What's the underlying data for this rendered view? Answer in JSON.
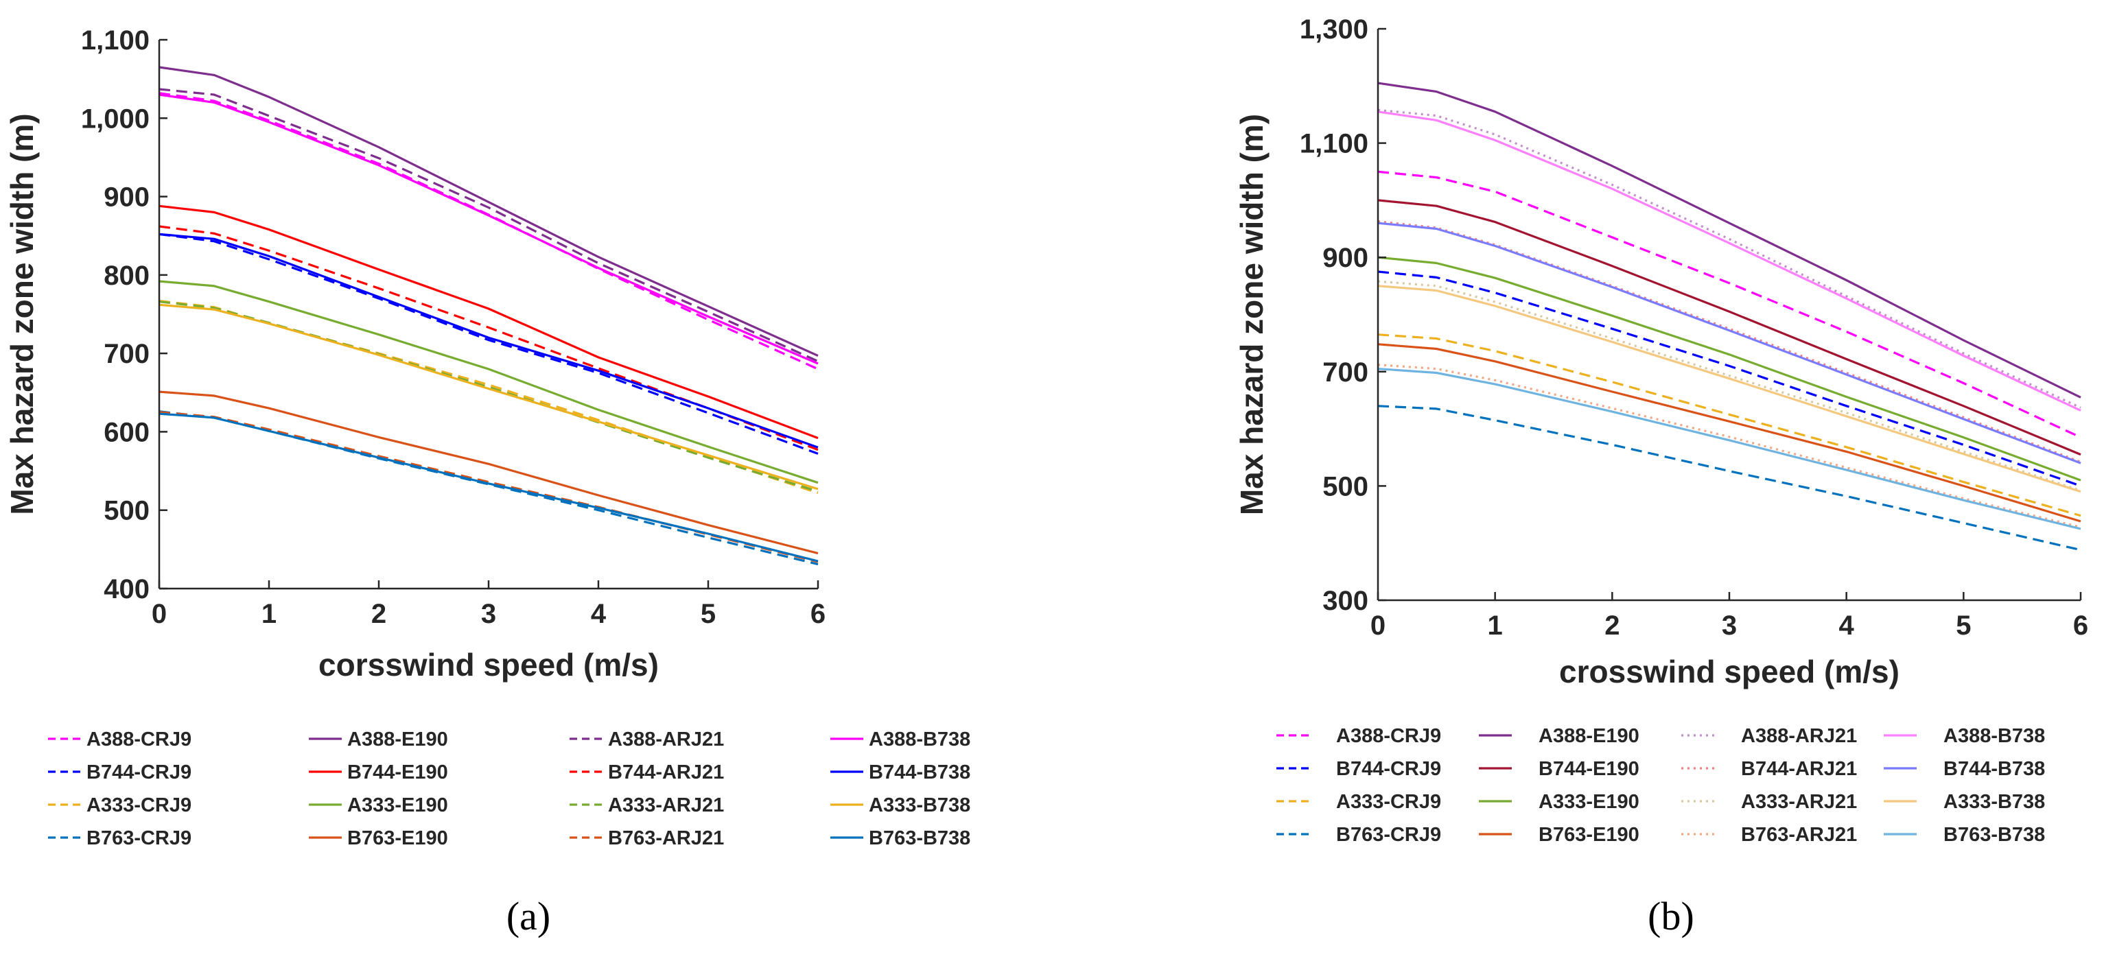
{
  "chart_data": [
    {
      "type": "line",
      "panel_label": "(a)",
      "xlabel": "corsswind speed (m/s)",
      "ylabel": "Max hazard zone width (m)",
      "xlim": [
        0,
        6
      ],
      "ylim": [
        400,
        1100
      ],
      "xticks": [
        "0",
        "1",
        "2",
        "3",
        "4",
        "5",
        "6"
      ],
      "yticks": [
        "400",
        "500",
        "600",
        "700",
        "800",
        "900",
        "1,000",
        "1,100"
      ],
      "x": [
        0,
        0.5,
        1,
        2,
        3,
        4,
        5,
        6
      ],
      "legend_position": "bottom",
      "series": [
        {
          "name": "A388-CRJ9",
          "color": "#ff00ff",
          "dash": "dashed",
          "values": [
            1032,
            1022,
            997,
            942,
            877,
            808,
            743,
            680
          ]
        },
        {
          "name": "A388-E190",
          "color": "#7e2f8e",
          "dash": "solid",
          "values": [
            1065,
            1055,
            1027,
            963,
            893,
            823,
            760,
            697
          ]
        },
        {
          "name": "A388-ARJ21",
          "color": "#7e2f8e",
          "dash": "dashed",
          "values": [
            1037,
            1030,
            1003,
            949,
            886,
            815,
            753,
            690
          ]
        },
        {
          "name": "A388-B738",
          "color": "#ff00ff",
          "dash": "solid",
          "values": [
            1030,
            1020,
            995,
            940,
            876,
            809,
            747,
            687
          ]
        },
        {
          "name": "B744-CRJ9",
          "color": "#0000ff",
          "dash": "dashed",
          "values": [
            852,
            843,
            820,
            770,
            717,
            675,
            624,
            572
          ]
        },
        {
          "name": "B744-E190",
          "color": "#ff0000",
          "dash": "solid",
          "values": [
            888,
            880,
            858,
            807,
            757,
            695,
            645,
            592
          ]
        },
        {
          "name": "B744-ARJ21",
          "color": "#ff0000",
          "dash": "dashed",
          "values": [
            862,
            853,
            831,
            783,
            733,
            681,
            630,
            577
          ]
        },
        {
          "name": "B744-B738",
          "color": "#0000ff",
          "dash": "solid",
          "values": [
            852,
            846,
            824,
            772,
            720,
            678,
            630,
            580
          ]
        },
        {
          "name": "A333-CRJ9",
          "color": "#edb120",
          "dash": "dashed",
          "values": [
            767,
            759,
            738,
            700,
            660,
            615,
            568,
            522
          ]
        },
        {
          "name": "A333-E190",
          "color": "#77ac30",
          "dash": "solid",
          "values": [
            792,
            786,
            766,
            724,
            680,
            628,
            581,
            535
          ]
        },
        {
          "name": "A333-ARJ21",
          "color": "#77ac30",
          "dash": "dashed",
          "values": [
            766,
            758,
            739,
            699,
            657,
            612,
            567,
            524
          ]
        },
        {
          "name": "A333-B738",
          "color": "#edb120",
          "dash": "solid",
          "values": [
            762,
            756,
            738,
            698,
            655,
            613,
            570,
            527
          ]
        },
        {
          "name": "B763-CRJ9",
          "color": "#0072bd",
          "dash": "dashed",
          "values": [
            626,
            618,
            601,
            566,
            533,
            500,
            465,
            431
          ]
        },
        {
          "name": "B763-E190",
          "color": "#d95319",
          "dash": "solid",
          "values": [
            651,
            646,
            630,
            593,
            559,
            519,
            481,
            445
          ]
        },
        {
          "name": "B763-ARJ21",
          "color": "#d95319",
          "dash": "dashed",
          "values": [
            625,
            619,
            603,
            569,
            536,
            504,
            469,
            434
          ]
        },
        {
          "name": "B763-B738",
          "color": "#0072bd",
          "dash": "solid",
          "values": [
            623,
            618,
            601,
            567,
            534,
            503,
            470,
            435
          ]
        }
      ]
    },
    {
      "type": "line",
      "panel_label": "(b)",
      "xlabel": "crosswind speed (m/s)",
      "ylabel": "Max hazard zone width (m)",
      "xlim": [
        0,
        6
      ],
      "ylim": [
        300,
        1300
      ],
      "xticks": [
        "0",
        "1",
        "2",
        "3",
        "4",
        "5",
        "6"
      ],
      "yticks": [
        "300",
        "500",
        "700",
        "900",
        "1,100",
        "1,300"
      ],
      "x": [
        0,
        0.5,
        1,
        2,
        3,
        4,
        5,
        6
      ],
      "legend_position": "bottom",
      "series": [
        {
          "name": "A388-CRJ9",
          "color": "#ff00ff",
          "dash": "dashed",
          "values": [
            1050,
            1040,
            1015,
            935,
            855,
            770,
            680,
            585
          ]
        },
        {
          "name": "A388-E190",
          "color": "#7e2f8e",
          "dash": "solid",
          "values": [
            1205,
            1190,
            1155,
            1060,
            960,
            860,
            755,
            655
          ]
        },
        {
          "name": "A388-ARJ21",
          "color": "#c090c8",
          "dash": "dotted",
          "values": [
            1158,
            1148,
            1115,
            1027,
            932,
            832,
            732,
            637
          ]
        },
        {
          "name": "A388-B738",
          "color": "#ff80ff",
          "dash": "solid",
          "values": [
            1155,
            1140,
            1105,
            1020,
            925,
            828,
            728,
            632
          ]
        },
        {
          "name": "B744-CRJ9",
          "color": "#0000ff",
          "dash": "dashed",
          "values": [
            875,
            865,
            838,
            775,
            710,
            640,
            572,
            500
          ]
        },
        {
          "name": "B744-E190",
          "color": "#a2142f",
          "dash": "solid",
          "values": [
            1000,
            990,
            962,
            885,
            805,
            722,
            640,
            555
          ]
        },
        {
          "name": "B744-ARJ21",
          "color": "#f08080",
          "dash": "dotted",
          "values": [
            963,
            952,
            922,
            850,
            775,
            698,
            620,
            542
          ]
        },
        {
          "name": "B744-B738",
          "color": "#7b7bff",
          "dash": "solid",
          "values": [
            960,
            950,
            920,
            848,
            772,
            695,
            617,
            540
          ]
        },
        {
          "name": "A333-CRJ9",
          "color": "#edb120",
          "dash": "dashed",
          "values": [
            765,
            758,
            736,
            682,
            625,
            568,
            507,
            448
          ]
        },
        {
          "name": "A333-E190",
          "color": "#77ac30",
          "dash": "solid",
          "values": [
            900,
            890,
            864,
            798,
            730,
            656,
            585,
            510
          ]
        },
        {
          "name": "A333-ARJ21",
          "color": "#d8c8a0",
          "dash": "dotted",
          "values": [
            858,
            850,
            822,
            758,
            693,
            628,
            560,
            492
          ]
        },
        {
          "name": "A333-B738",
          "color": "#f5c880",
          "dash": "solid",
          "values": [
            850,
            842,
            815,
            752,
            688,
            622,
            556,
            490
          ]
        },
        {
          "name": "B763-CRJ9",
          "color": "#0072bd",
          "dash": "dashed",
          "values": [
            640,
            635,
            615,
            572,
            526,
            482,
            435,
            388
          ]
        },
        {
          "name": "B763-E190",
          "color": "#d95319",
          "dash": "solid",
          "values": [
            748,
            740,
            718,
            665,
            613,
            560,
            500,
            438
          ]
        },
        {
          "name": "B763-ARJ21",
          "color": "#f4a582",
          "dash": "dotted",
          "values": [
            712,
            705,
            685,
            636,
            586,
            532,
            478,
            428
          ]
        },
        {
          "name": "B763-B738",
          "color": "#6fb3e0",
          "dash": "solid",
          "values": [
            705,
            698,
            678,
            630,
            580,
            528,
            475,
            425
          ]
        }
      ]
    }
  ]
}
